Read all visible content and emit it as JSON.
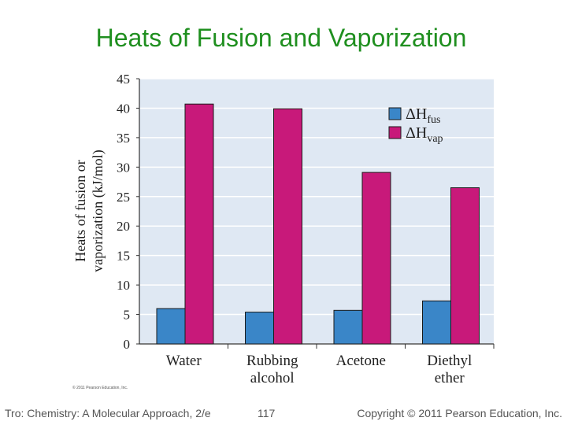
{
  "slide": {
    "title": "Heats of Fusion and Vaporization"
  },
  "footer": {
    "left": "Tro: Chemistry: A Molecular Approach, 2/e",
    "page": "117",
    "copyright": "Copyright © 2011 Pearson Education, Inc."
  },
  "chart_data": {
    "type": "bar",
    "categories": [
      [
        "Water"
      ],
      [
        "Rubbing",
        "alcohol"
      ],
      [
        "Acetone"
      ],
      [
        "Diethyl",
        "ether"
      ]
    ],
    "ylabel": [
      "Heats of fusion or",
      "vaporization (kJ/mol)"
    ],
    "ylim": [
      0,
      45
    ],
    "yticks": [
      0,
      5,
      10,
      15,
      20,
      25,
      30,
      35,
      40,
      45
    ],
    "grid": true,
    "legend_position": "top-right",
    "credit": "© 2011 Pearson Education, Inc.",
    "series": [
      {
        "name": "ΔHfus",
        "symbol": "ΔH",
        "subscript": "fus",
        "color": "#3a86c8",
        "values": [
          6.0,
          5.4,
          5.7,
          7.3
        ]
      },
      {
        "name": "ΔHvap",
        "symbol": "ΔH",
        "subscript": "vap",
        "color": "#c8197a",
        "values": [
          40.7,
          39.9,
          29.1,
          26.5
        ]
      }
    ]
  }
}
